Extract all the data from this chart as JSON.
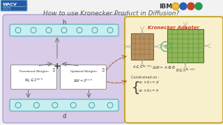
{
  "bg_color": "#f2f2f2",
  "title": "How to use Kronecker Product in Diffusion?",
  "title_fontsize": 6.5,
  "title_color": "#555555",
  "left_box_color": "#d8cce8",
  "left_box_border": "#b0a0d0",
  "right_box_color": "#f8f0cc",
  "right_box_border": "#c8a830",
  "node_bar_color": "#c8eef0",
  "node_bar_border": "#50a8b8",
  "weight_box_color": "#ffffff",
  "weight_box_border": "#909090",
  "kronecker_title": "Kronecker Adapter",
  "kronecker_title_color": "#d04020",
  "matrix_A_color": "#b89060",
  "matrix_A_border": "#806030",
  "matrix_B_color": "#90b858",
  "matrix_B_border": "#507030",
  "label_h": "h",
  "label_d": "d",
  "pretrained_label": "Pretrained Weights",
  "pretrained_formula": "W_0 \\in \\mathbb{R}^{d\\times h}",
  "updated_label": "Updated Weights",
  "updated_formula": "\\Delta W = \\mathbb{R}^{d\\times h}",
  "arrow_color": "#707070",
  "dotted_arrow_color": "#c07040",
  "tensor_symbol_color": "#60b060",
  "compass_arrow_color": "#a0a0a0"
}
